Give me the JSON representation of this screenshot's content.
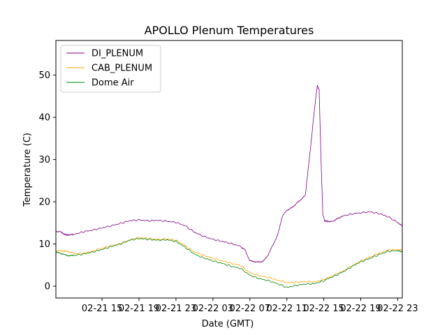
{
  "chart_data": {
    "type": "line",
    "title": "APOLLO Plenum Temperatures",
    "xlabel": "Date (GMT)",
    "ylabel": "Temperature (C)",
    "x_unit": "hours since 02-21 10:00 GMT",
    "xlim": [
      0,
      37.5
    ],
    "ylim": [
      -2.8,
      58.2
    ],
    "y_ticks": [
      0,
      10,
      20,
      30,
      40,
      50
    ],
    "x_ticks": [
      {
        "value": 5,
        "label": "02-21 15"
      },
      {
        "value": 9,
        "label": "02-21 19"
      },
      {
        "value": 13,
        "label": "02-21 23"
      },
      {
        "value": 17,
        "label": "02-22 03"
      },
      {
        "value": 21,
        "label": "02-22 07"
      },
      {
        "value": 25,
        "label": "02-22 11"
      },
      {
        "value": 29,
        "label": "02-22 15"
      },
      {
        "value": 33,
        "label": "02-22 19"
      },
      {
        "value": 37,
        "label": "02-22 23"
      }
    ],
    "legend_position": "top-left",
    "series": [
      {
        "name": "DI_PLENUM",
        "color": "#800080",
        "x": [
          0,
          0.5,
          0.9,
          1.3,
          2,
          3,
          4,
          5,
          6,
          7,
          8,
          9,
          10,
          11,
          12,
          13,
          14,
          15,
          16,
          17,
          18,
          19,
          20,
          20.5,
          21,
          21.5,
          22,
          22.5,
          23,
          23.5,
          24,
          24.5,
          25,
          25.5,
          26,
          26.5,
          27,
          27.3,
          27.6,
          27.9,
          28.1,
          28.3,
          28.5,
          28.7,
          28.9,
          29.1,
          29.3,
          29.6,
          30,
          30.5,
          31,
          32,
          33,
          34,
          35,
          36,
          37,
          37.5
        ],
        "values": [
          13.0,
          12.9,
          12.3,
          12.1,
          12.3,
          12.9,
          13.3,
          13.8,
          14.3,
          14.9,
          15.5,
          15.7,
          15.5,
          15.6,
          15.4,
          15.1,
          14.3,
          12.8,
          11.8,
          11.1,
          10.6,
          10.1,
          9.4,
          8.5,
          6.0,
          5.8,
          5.7,
          6.0,
          7.5,
          9.8,
          12.0,
          16.5,
          18.0,
          18.5,
          19.5,
          20.5,
          21.5,
          27.5,
          33.5,
          40.0,
          44.0,
          47.5,
          46.5,
          30.0,
          17.0,
          15.5,
          15.4,
          15.3,
          15.4,
          16.0,
          16.6,
          17.1,
          17.4,
          17.6,
          17.2,
          16.4,
          15.1,
          14.3
        ]
      },
      {
        "name": "CAB_PLENUM",
        "color": "#FFA500",
        "x": [
          0,
          0.5,
          1,
          1.5,
          2,
          3,
          4,
          5,
          6,
          7,
          8,
          9,
          10,
          11,
          12,
          13,
          14,
          15,
          16,
          17,
          18,
          19,
          20,
          21,
          22,
          23,
          24,
          25,
          26,
          27,
          28,
          29,
          30,
          31,
          32,
          33,
          34,
          35,
          36,
          37,
          37.5
        ],
        "values": [
          8.3,
          8.4,
          8.3,
          8.1,
          7.7,
          7.8,
          8.3,
          9.0,
          9.6,
          10.1,
          11.0,
          11.5,
          11.3,
          11.1,
          11.2,
          10.9,
          9.6,
          8.1,
          7.3,
          6.6,
          6.0,
          5.4,
          4.9,
          3.2,
          2.5,
          2.1,
          1.4,
          0.9,
          0.9,
          1.1,
          1.0,
          1.6,
          2.5,
          3.5,
          4.8,
          6.0,
          6.9,
          7.8,
          8.6,
          8.7,
          8.5
        ]
      },
      {
        "name": "Dome Air",
        "color": "#008000",
        "x": [
          0,
          0.5,
          1,
          1.5,
          2,
          3,
          4,
          5,
          6,
          7,
          8,
          9,
          10,
          11,
          12,
          13,
          14,
          15,
          16,
          17,
          18,
          19,
          20,
          21,
          22,
          23,
          24,
          25,
          26,
          27,
          28,
          29,
          30,
          31,
          32,
          33,
          34,
          35,
          36,
          37,
          37.5
        ],
        "values": [
          8.0,
          7.8,
          7.4,
          7.2,
          7.3,
          7.6,
          8.1,
          8.7,
          9.4,
          10.0,
          10.9,
          11.3,
          11.1,
          10.9,
          11.0,
          10.6,
          9.2,
          7.6,
          6.7,
          6.0,
          5.4,
          4.7,
          4.2,
          2.6,
          1.8,
          1.3,
          0.6,
          -0.3,
          0.2,
          0.5,
          0.6,
          1.3,
          2.3,
          3.3,
          4.6,
          5.8,
          6.6,
          7.5,
          8.3,
          8.4,
          8.1
        ]
      }
    ]
  }
}
